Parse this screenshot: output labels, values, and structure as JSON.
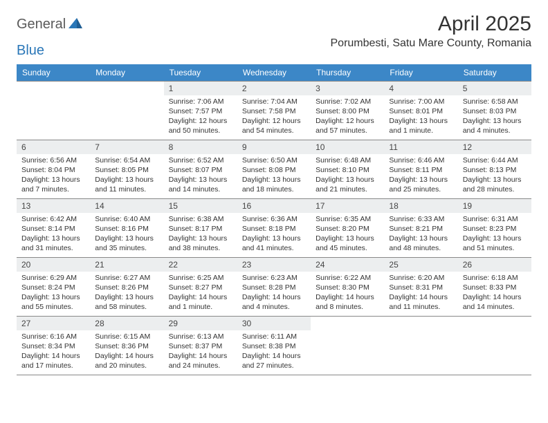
{
  "logo": {
    "general": "General",
    "blue": "Blue"
  },
  "title": "April 2025",
  "location": "Porumbesti, Satu Mare County, Romania",
  "colors": {
    "header_bg": "#3c87c7",
    "header_fg": "#ffffff",
    "daynum_bg": "#eceeef",
    "rule": "#888888",
    "logo_gray": "#5a5a5a",
    "logo_blue": "#2a77b8"
  },
  "weekdays": [
    "Sunday",
    "Monday",
    "Tuesday",
    "Wednesday",
    "Thursday",
    "Friday",
    "Saturday"
  ],
  "grid": [
    [
      null,
      null,
      {
        "n": "1",
        "sr": "7:06 AM",
        "ss": "7:57 PM",
        "dl": "12 hours and 50 minutes."
      },
      {
        "n": "2",
        "sr": "7:04 AM",
        "ss": "7:58 PM",
        "dl": "12 hours and 54 minutes."
      },
      {
        "n": "3",
        "sr": "7:02 AM",
        "ss": "8:00 PM",
        "dl": "12 hours and 57 minutes."
      },
      {
        "n": "4",
        "sr": "7:00 AM",
        "ss": "8:01 PM",
        "dl": "13 hours and 1 minute."
      },
      {
        "n": "5",
        "sr": "6:58 AM",
        "ss": "8:03 PM",
        "dl": "13 hours and 4 minutes."
      }
    ],
    [
      {
        "n": "6",
        "sr": "6:56 AM",
        "ss": "8:04 PM",
        "dl": "13 hours and 7 minutes."
      },
      {
        "n": "7",
        "sr": "6:54 AM",
        "ss": "8:05 PM",
        "dl": "13 hours and 11 minutes."
      },
      {
        "n": "8",
        "sr": "6:52 AM",
        "ss": "8:07 PM",
        "dl": "13 hours and 14 minutes."
      },
      {
        "n": "9",
        "sr": "6:50 AM",
        "ss": "8:08 PM",
        "dl": "13 hours and 18 minutes."
      },
      {
        "n": "10",
        "sr": "6:48 AM",
        "ss": "8:10 PM",
        "dl": "13 hours and 21 minutes."
      },
      {
        "n": "11",
        "sr": "6:46 AM",
        "ss": "8:11 PM",
        "dl": "13 hours and 25 minutes."
      },
      {
        "n": "12",
        "sr": "6:44 AM",
        "ss": "8:13 PM",
        "dl": "13 hours and 28 minutes."
      }
    ],
    [
      {
        "n": "13",
        "sr": "6:42 AM",
        "ss": "8:14 PM",
        "dl": "13 hours and 31 minutes."
      },
      {
        "n": "14",
        "sr": "6:40 AM",
        "ss": "8:16 PM",
        "dl": "13 hours and 35 minutes."
      },
      {
        "n": "15",
        "sr": "6:38 AM",
        "ss": "8:17 PM",
        "dl": "13 hours and 38 minutes."
      },
      {
        "n": "16",
        "sr": "6:36 AM",
        "ss": "8:18 PM",
        "dl": "13 hours and 41 minutes."
      },
      {
        "n": "17",
        "sr": "6:35 AM",
        "ss": "8:20 PM",
        "dl": "13 hours and 45 minutes."
      },
      {
        "n": "18",
        "sr": "6:33 AM",
        "ss": "8:21 PM",
        "dl": "13 hours and 48 minutes."
      },
      {
        "n": "19",
        "sr": "6:31 AM",
        "ss": "8:23 PM",
        "dl": "13 hours and 51 minutes."
      }
    ],
    [
      {
        "n": "20",
        "sr": "6:29 AM",
        "ss": "8:24 PM",
        "dl": "13 hours and 55 minutes."
      },
      {
        "n": "21",
        "sr": "6:27 AM",
        "ss": "8:26 PM",
        "dl": "13 hours and 58 minutes."
      },
      {
        "n": "22",
        "sr": "6:25 AM",
        "ss": "8:27 PM",
        "dl": "14 hours and 1 minute."
      },
      {
        "n": "23",
        "sr": "6:23 AM",
        "ss": "8:28 PM",
        "dl": "14 hours and 4 minutes."
      },
      {
        "n": "24",
        "sr": "6:22 AM",
        "ss": "8:30 PM",
        "dl": "14 hours and 8 minutes."
      },
      {
        "n": "25",
        "sr": "6:20 AM",
        "ss": "8:31 PM",
        "dl": "14 hours and 11 minutes."
      },
      {
        "n": "26",
        "sr": "6:18 AM",
        "ss": "8:33 PM",
        "dl": "14 hours and 14 minutes."
      }
    ],
    [
      {
        "n": "27",
        "sr": "6:16 AM",
        "ss": "8:34 PM",
        "dl": "14 hours and 17 minutes."
      },
      {
        "n": "28",
        "sr": "6:15 AM",
        "ss": "8:36 PM",
        "dl": "14 hours and 20 minutes."
      },
      {
        "n": "29",
        "sr": "6:13 AM",
        "ss": "8:37 PM",
        "dl": "14 hours and 24 minutes."
      },
      {
        "n": "30",
        "sr": "6:11 AM",
        "ss": "8:38 PM",
        "dl": "14 hours and 27 minutes."
      },
      null,
      null,
      null
    ]
  ],
  "labels": {
    "sunrise": "Sunrise: ",
    "sunset": "Sunset: ",
    "daylight": "Daylight: "
  }
}
